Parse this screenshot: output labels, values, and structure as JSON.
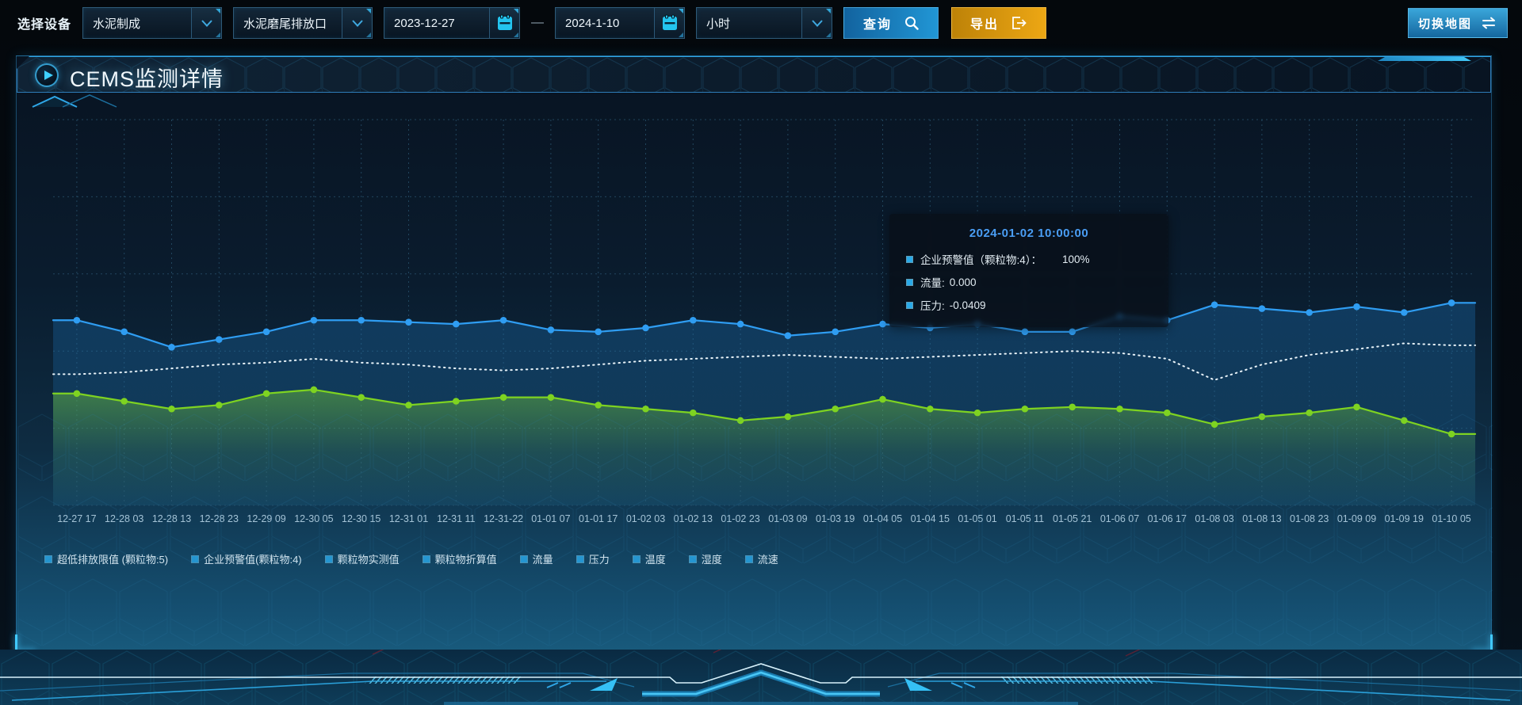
{
  "toolbar": {
    "device_label": "选择设备",
    "device_select": {
      "value": "水泥制成"
    },
    "outlet_select": {
      "value": "水泥磨尾排放口"
    },
    "date_start": "2023-12-27",
    "date_separator": "—",
    "date_end": "2024-1-10",
    "granularity_select": {
      "value": "小时"
    },
    "query_button": "查询",
    "export_button": "导出",
    "switch_map_button": "切换地图"
  },
  "panel": {
    "title": "CEMS监测详情"
  },
  "tooltip": {
    "title": "2024-01-02 10:00:00",
    "rows": [
      {
        "label": "企业预警值（颗粒物:4）：",
        "value": "100%"
      },
      {
        "label": "流量:",
        "value": "0.000"
      },
      {
        "label": "压力:",
        "value": "-0.0409"
      }
    ]
  },
  "legend": {
    "marker_color": "#2596d1",
    "items": [
      "超低排放限值 (颗粒物:5)",
      "企业预警值(颗粒物:4)",
      "颗粒物实测值",
      "颗粒物折算值",
      "流量",
      "压力",
      "温度",
      "湿度",
      "流速"
    ]
  },
  "chart_data": {
    "type": "line",
    "title": "",
    "xlabel": "",
    "ylabel": "",
    "grid": "dashed",
    "legend_position": "bottom",
    "y_axis_visible": false,
    "ylim": [
      0,
      100
    ],
    "x_labels": [
      "12-27 17",
      "12-28 03",
      "12-28 13",
      "12-28 23",
      "12-29 09",
      "12-30 05",
      "12-30 15",
      "12-31 01",
      "12-31 11",
      "12-31-22",
      "01-01 07",
      "01-01 17",
      "01-02 03",
      "01-02 13",
      "01-02 23",
      "01-03 09",
      "01-03 19",
      "01-04 05",
      "01-04 15",
      "01-05 01",
      "01-05 11",
      "01-05 21",
      "01-06 07",
      "01-06 17",
      "01-08 03",
      "01-08 13",
      "01-08 23",
      "01-09 09",
      "01-09 19",
      "01-10 05"
    ],
    "series": [
      {
        "name": "series-blue",
        "color": "#2f9df2",
        "line_style": "solid",
        "dots": true,
        "area_fill": "blue",
        "values": [
          48,
          45,
          41,
          43,
          45,
          48,
          48,
          47.5,
          47,
          48,
          45.5,
          45,
          46,
          48,
          47,
          44,
          45,
          47,
          46,
          47,
          45,
          45,
          49,
          48,
          52,
          51,
          50,
          51.5,
          50,
          52.5
        ]
      },
      {
        "name": "series-white-dotted",
        "color": "#e7f2f8",
        "line_style": "dotted",
        "dots": false,
        "area_fill": null,
        "values": [
          34,
          34.5,
          35.5,
          36.5,
          37,
          38,
          37,
          36.5,
          35.5,
          35,
          35.5,
          36.5,
          37.5,
          38,
          38.5,
          39,
          38.5,
          38,
          38.5,
          39,
          39.5,
          40,
          39.5,
          38,
          32.5,
          36.5,
          39,
          40.5,
          42,
          41.5
        ]
      },
      {
        "name": "series-green",
        "color": "#7ed321",
        "line_style": "solid",
        "dots": true,
        "area_fill": "green",
        "values": [
          29,
          27,
          25,
          26,
          29,
          30,
          28,
          26,
          27,
          28,
          28,
          26,
          25,
          24,
          22,
          23,
          25,
          27.5,
          25,
          24,
          25,
          25.5,
          25,
          24,
          21,
          23,
          24,
          25.5,
          22,
          18.5
        ]
      }
    ]
  },
  "colors": {
    "accent_cyan": "#2fa7e8",
    "tooltip_title": "#4a9ef5",
    "query_button_gradient": [
      "#12639f",
      "#2196d5"
    ],
    "export_button_gradient": [
      "#bd8208",
      "#eda714"
    ],
    "grid_line": "#27506a"
  }
}
